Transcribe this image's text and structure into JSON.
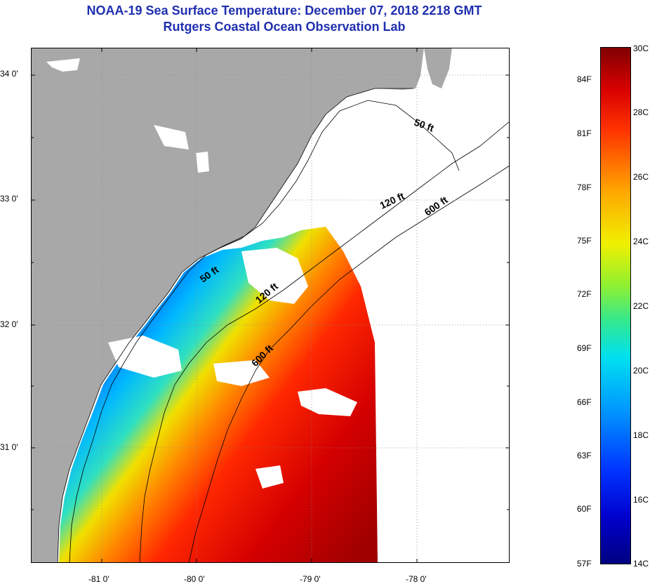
{
  "header": {
    "title": "NOAA-19 Sea Surface Temperature:  December 07, 2018 2218 GMT",
    "subtitle": "Rutgers Coastal Ocean Observation Lab"
  },
  "map": {
    "lat_labels": [
      "34 0'",
      "33 0'",
      "32 0'",
      "31 0'"
    ],
    "lon_labels": [
      "-81 0'",
      "-80 0'",
      "-79 0'",
      "-78 0'"
    ],
    "isobath_labels": [
      "50 ft",
      "120 ft",
      "600 ft",
      "50 ft",
      "120 ft",
      "600 ft"
    ],
    "colors": {
      "land": "#a8a8a8",
      "no_data": "#ffffff",
      "frame": "#000000"
    }
  },
  "colorbar": {
    "celsius": [
      "30C",
      "28C",
      "26C",
      "24C",
      "22C",
      "20C",
      "18C",
      "16C",
      "14C"
    ],
    "fahrenheit": [
      "84F",
      "81F",
      "78F",
      "75F",
      "72F",
      "69F",
      "66F",
      "63F",
      "60F",
      "57F"
    ],
    "range_c": [
      14,
      30
    ]
  }
}
